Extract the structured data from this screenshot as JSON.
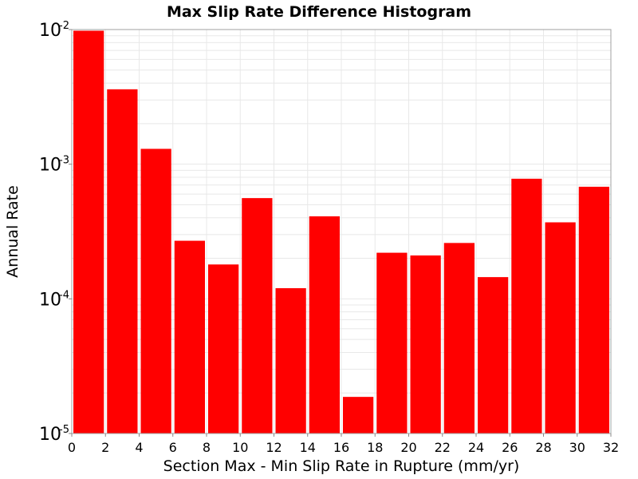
{
  "chart_data": {
    "type": "bar",
    "title": "Max Slip Rate Difference Histogram",
    "xlabel": "Section Max - Min Slip Rate in Rupture (mm/yr)",
    "ylabel": "Annual Rate",
    "yscale": "log",
    "xlim": [
      0,
      32
    ],
    "ylim": [
      1e-05,
      0.01
    ],
    "bin_width": 2,
    "bar_color": "#ff0000",
    "grid": true,
    "x_ticks": [
      "0",
      "2",
      "4",
      "6",
      "8",
      "10",
      "12",
      "14",
      "16",
      "18",
      "20",
      "22",
      "24",
      "26",
      "28",
      "30",
      "32"
    ],
    "y_ticks": [
      {
        "base": "10",
        "exp": "-2",
        "value": 0.01
      },
      {
        "base": "10",
        "exp": "-3",
        "value": 0.001
      },
      {
        "base": "10",
        "exp": "-4",
        "value": 0.0001
      },
      {
        "base": "10",
        "exp": "-5",
        "value": 1e-05
      }
    ],
    "bins": [
      {
        "x": 1,
        "value": 0.0098
      },
      {
        "x": 3,
        "value": 0.0036
      },
      {
        "x": 5,
        "value": 0.0013
      },
      {
        "x": 7,
        "value": 0.00027
      },
      {
        "x": 9,
        "value": 0.00018
      },
      {
        "x": 11,
        "value": 0.00056
      },
      {
        "x": 13,
        "value": 0.00012
      },
      {
        "x": 15,
        "value": 0.00041
      },
      {
        "x": 17,
        "value": 1.87e-05
      },
      {
        "x": 19,
        "value": 0.00022
      },
      {
        "x": 21,
        "value": 0.00021
      },
      {
        "x": 23,
        "value": 0.00026
      },
      {
        "x": 25,
        "value": 0.000145
      },
      {
        "x": 27,
        "value": 0.00078
      },
      {
        "x": 29,
        "value": 0.00037
      },
      {
        "x": 31,
        "value": 0.00068
      }
    ]
  }
}
